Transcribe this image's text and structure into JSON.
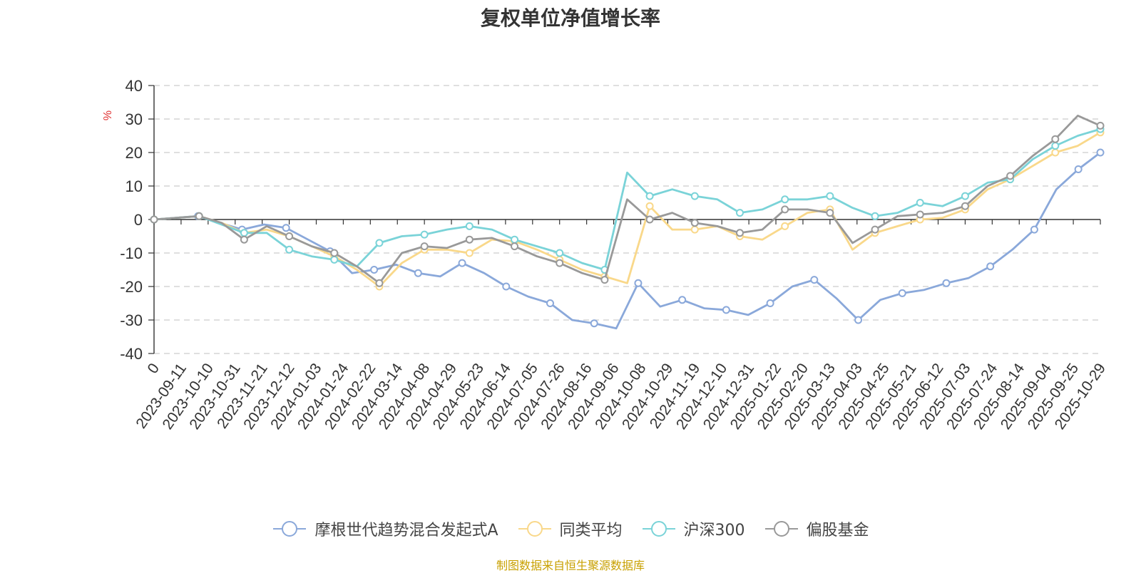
{
  "chart_data": {
    "type": "line",
    "title": "复权单位净值增长率",
    "ylabel": "%",
    "ylim": [
      -40,
      40
    ],
    "yticks": [
      40,
      30,
      20,
      10,
      0,
      -10,
      -20,
      -30,
      -40
    ],
    "grid": true,
    "legend_position": "bottom",
    "x_tick_labels": [
      "0",
      "2023-09-11",
      "2023-10-10",
      "2023-10-31",
      "2023-11-21",
      "2023-12-12",
      "2024-01-03",
      "2024-01-24",
      "2024-02-22",
      "2024-03-14",
      "2024-04-08",
      "2024-04-29",
      "2024-05-23",
      "2024-06-14",
      "2024-07-05",
      "2024-07-26",
      "2024-08-16",
      "2024-09-06",
      "2024-10-08",
      "2024-10-29",
      "2024-11-19",
      "2024-12-10",
      "2024-12-31",
      "2025-01-22",
      "2025-02-20",
      "2025-03-13",
      "2025-04-03",
      "2025-04-25",
      "2025-05-21",
      "2025-06-12",
      "2025-07-03",
      "2025-07-24",
      "2025-08-14",
      "2025-09-04",
      "2025-09-25",
      "2025-10-29"
    ],
    "series": [
      {
        "name": "摩根世代趋势混合发起式A",
        "color": "#8aa8da",
        "values": [
          0,
          0.5,
          1.0,
          -1.0,
          -3.0,
          -1.5,
          -2.5,
          -6.0,
          -9.5,
          -16.0,
          -15.0,
          -13.5,
          -16.0,
          -17.0,
          -13.0,
          -16.0,
          -20.0,
          -23.0,
          -25.0,
          -30.0,
          -31.0,
          -32.5,
          -19.0,
          -26.0,
          -24.0,
          -26.5,
          -27.0,
          -28.5,
          -25.0,
          -20.0,
          -18.0,
          -23.5,
          -30.0,
          -24.0,
          -22.0,
          -21.0,
          -19.0,
          -17.5,
          -14.0,
          -9.0,
          -3.0,
          9.0,
          15.0,
          20.0
        ]
      },
      {
        "name": "同类平均",
        "color": "#f9d88a",
        "values": [
          0,
          0.5,
          1.0,
          -1.0,
          -4.0,
          -3.0,
          -5.0,
          -8.0,
          -11.0,
          -15.0,
          -20.0,
          -13.0,
          -9.0,
          -9.0,
          -10.0,
          -6.0,
          -6.5,
          -9.0,
          -12.0,
          -15.0,
          -17.0,
          -19.0,
          4.0,
          -3.0,
          -3.0,
          -2.0,
          -5.0,
          -6.0,
          -2.0,
          2.0,
          3.0,
          -9.0,
          -4.0,
          -2.0,
          0,
          0.5,
          3.0,
          9.0,
          12.0,
          16.0,
          20.0,
          22.0,
          26.0
        ]
      },
      {
        "name": "沪深300",
        "color": "#7ad3d8",
        "values": [
          0,
          0.5,
          1.0,
          -1.5,
          -4.0,
          -4.0,
          -9.0,
          -11.0,
          -12.0,
          -14.0,
          -7.0,
          -5.0,
          -4.5,
          -3.0,
          -2.0,
          -3.0,
          -6.0,
          -8.0,
          -10.0,
          -13.0,
          -15.0,
          14.0,
          7.0,
          9.0,
          7.0,
          6.0,
          2.0,
          3.0,
          6.0,
          6.0,
          7.0,
          3.5,
          1.0,
          2.0,
          5.0,
          4.0,
          7.0,
          11.0,
          12.0,
          18.0,
          22.0,
          25.0,
          27.0
        ]
      },
      {
        "name": "偏股基金",
        "color": "#999999",
        "values": [
          0,
          0.5,
          1.0,
          -1.0,
          -6.0,
          -2.0,
          -5.0,
          -8.0,
          -10.0,
          -14.0,
          -19.0,
          -10.0,
          -8.0,
          -8.5,
          -6.0,
          -5.5,
          -8.0,
          -11.0,
          -13.0,
          -16.0,
          -18.0,
          6.0,
          0,
          2.0,
          -1.0,
          -2.0,
          -4.0,
          -3.0,
          3.0,
          3.0,
          2.0,
          -7.0,
          -3.0,
          1.0,
          1.5,
          2.0,
          4.0,
          10.0,
          13.0,
          19.0,
          24.0,
          31.0,
          28.0
        ]
      }
    ]
  },
  "footnote": "制图数据来自恒生聚源数据库"
}
